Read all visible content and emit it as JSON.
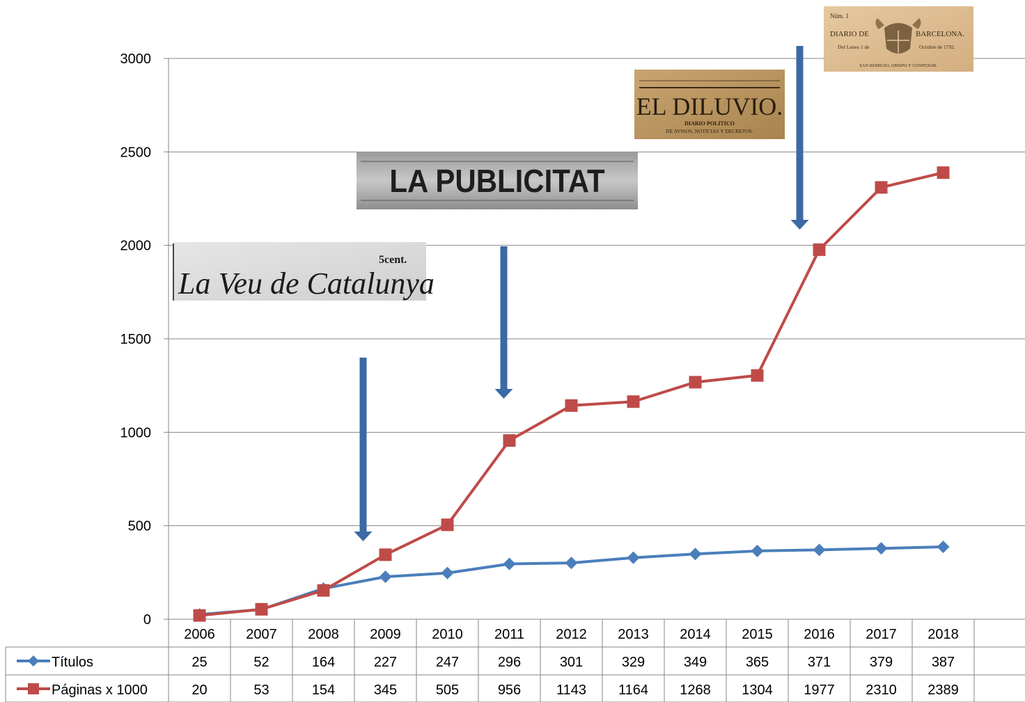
{
  "chart_data": {
    "type": "line",
    "categories": [
      "2006",
      "2007",
      "2008",
      "2009",
      "2010",
      "2011",
      "2012",
      "2013",
      "2014",
      "2015",
      "2016",
      "2017",
      "2018"
    ],
    "series": [
      {
        "name": "Títulos",
        "values": [
          25,
          52,
          164,
          227,
          247,
          296,
          301,
          329,
          349,
          365,
          371,
          379,
          387
        ],
        "color": "#4a7ebb",
        "marker": "diamond"
      },
      {
        "name": "Páginas x 1000",
        "values": [
          20,
          53,
          154,
          345,
          505,
          956,
          1143,
          1164,
          1268,
          1304,
          1977,
          2310,
          2389
        ],
        "color": "#be4b48",
        "marker": "square"
      }
    ],
    "ylim": [
      0,
      3000
    ],
    "yticks": [
      0,
      500,
      1000,
      1500,
      2000,
      2500,
      3000
    ],
    "grid": true,
    "data_table": true
  },
  "annotations": {
    "arrow_color": "#3b6aa4",
    "arrows_point_to": [
      "2009",
      "2011",
      "2016"
    ],
    "mastheads": [
      {
        "name": "la-veu-de-catalunya",
        "title": "La Veu de Catalunya",
        "price": "5cent."
      },
      {
        "name": "la-publicitat",
        "title": "LA PUBLICITAT"
      },
      {
        "name": "el-diluvio",
        "title": "EL DILUVIO.",
        "subtitle": "DIARIO POLITICO",
        "tagline": "DE AVISOS, NOTICIAS Y DECRETOS."
      },
      {
        "name": "diario-de-barcelona",
        "number": "Núm. 1",
        "title_left": "DIARIO DE",
        "title_right": "BARCELONA.",
        "date_left": "Del Lunes 1 de",
        "date_right": "Octubre de 1792.",
        "saint": "SAN REMIGIO, OBISPO Y CONFESOR."
      }
    ]
  }
}
